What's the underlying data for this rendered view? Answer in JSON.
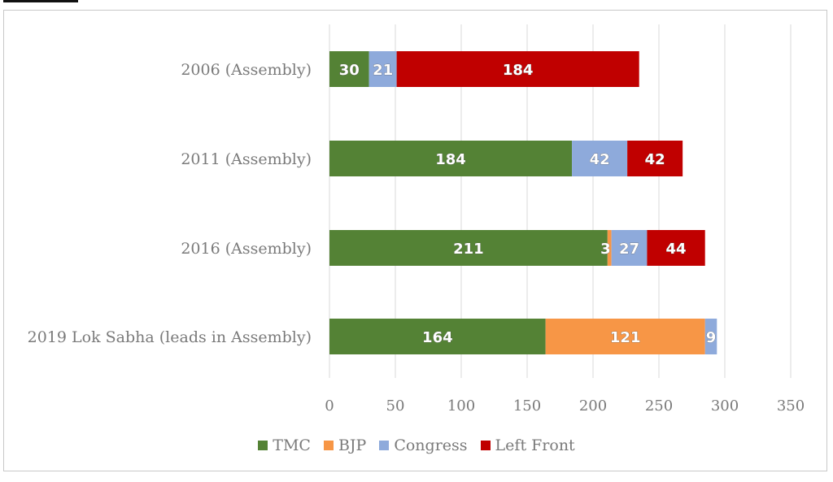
{
  "chart_data": {
    "type": "bar",
    "orientation": "horizontal",
    "stacked": true,
    "categories": [
      "2006 (Assembly)",
      "2011 (Assembly)",
      "2016 (Assembly)",
      "2019 Lok Sabha (leads in Assembly)"
    ],
    "series": [
      {
        "name": "TMC",
        "color": "#548235",
        "values": [
          30,
          184,
          211,
          164
        ]
      },
      {
        "name": "BJP",
        "color": "#f79646",
        "values": [
          0,
          0,
          3,
          121
        ]
      },
      {
        "name": "Congress",
        "color": "#8eaadb",
        "values": [
          21,
          42,
          27,
          9
        ]
      },
      {
        "name": "Left Front",
        "color": "#c00000",
        "values": [
          184,
          42,
          44,
          0
        ]
      }
    ],
    "xlim": [
      0,
      350
    ],
    "xticks": [
      0,
      50,
      100,
      150,
      200,
      250,
      300,
      350
    ],
    "grid": true,
    "legend": "bottom"
  }
}
